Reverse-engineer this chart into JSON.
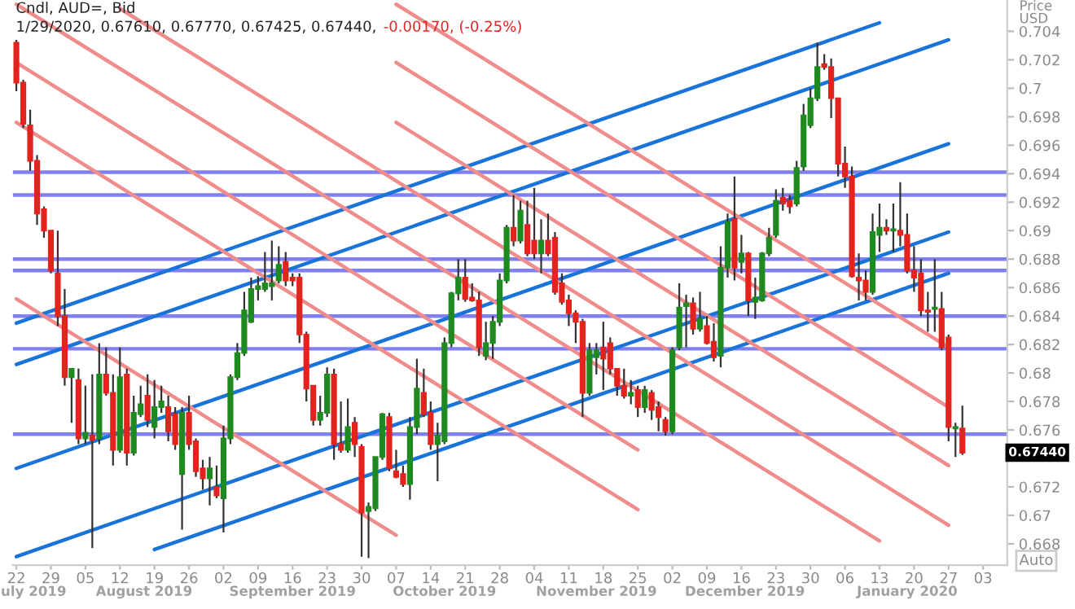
{
  "chart_data": {
    "type": "candlestick",
    "title": "Cndl, AUD=, Bid",
    "ylabel": "Price\nUSD",
    "annotations": [
      "1/29/2020, 0.67610, 0.67770, 0.67425, 0.67440,",
      "-0.00170, (-0.25%)",
      "0.67440",
      "Auto",
      "uly 2019",
      "August 2019",
      "September 2019",
      "October 2019",
      "November 2019",
      "December 2019",
      "January 2020"
    ],
    "categories": [
      "22",
      null,
      null,
      null,
      null,
      "29",
      null,
      null,
      null,
      null,
      "05",
      null,
      null,
      null,
      null,
      "12",
      null,
      null,
      null,
      null,
      "19",
      null,
      null,
      null,
      null,
      "26",
      null,
      null,
      null,
      null,
      "02",
      null,
      null,
      null,
      null,
      "09",
      null,
      null,
      null,
      null,
      "16",
      null,
      null,
      null,
      null,
      "23",
      null,
      null,
      null,
      null,
      "30",
      null,
      null,
      null,
      null,
      "07",
      null,
      null,
      null,
      null,
      "14",
      null,
      null,
      null,
      null,
      "21",
      null,
      null,
      null,
      null,
      "28",
      null,
      null,
      null,
      null,
      "04",
      null,
      null,
      null,
      null,
      "11",
      null,
      null,
      null,
      null,
      "18",
      null,
      null,
      null,
      null,
      "25",
      null,
      null,
      null,
      null,
      "02",
      null,
      null,
      null,
      null,
      "09",
      null,
      null,
      null,
      null,
      "16",
      null,
      null,
      null,
      null,
      "23",
      null,
      null,
      null,
      null,
      "30",
      null,
      null,
      null,
      null,
      "06",
      null,
      null,
      null,
      null,
      "13",
      null,
      null,
      null,
      null,
      "20",
      null,
      null,
      null,
      null,
      "27",
      null,
      null,
      null,
      null,
      "03"
    ],
    "ohlc": [
      [
        0.7032,
        0.7034,
        0.6998,
        0.7004
      ],
      [
        0.7004,
        0.7006,
        0.6972,
        0.6975
      ],
      [
        0.6974,
        0.6985,
        0.6942,
        0.6949
      ],
      [
        0.6949,
        0.6953,
        0.6904,
        0.6912
      ],
      [
        0.6915,
        0.6917,
        0.6895,
        0.69
      ],
      [
        0.69,
        0.69,
        0.687,
        0.6872
      ],
      [
        0.687,
        0.69,
        0.6833,
        0.684
      ],
      [
        0.684,
        0.6859,
        0.6791,
        0.6797
      ],
      [
        0.6797,
        0.6803,
        0.6765,
        0.6803
      ],
      [
        0.6795,
        0.6803,
        0.675,
        0.6754
      ],
      [
        0.6754,
        0.6791,
        0.675,
        0.6758
      ],
      [
        0.6756,
        0.6799,
        0.6677,
        0.6753
      ],
      [
        0.6754,
        0.6821,
        0.675,
        0.6799
      ],
      [
        0.6799,
        0.6818,
        0.6784,
        0.6786
      ],
      [
        0.6786,
        0.6799,
        0.6735,
        0.6746
      ],
      [
        0.6746,
        0.6818,
        0.6744,
        0.6797
      ],
      [
        0.6799,
        0.6803,
        0.6735,
        0.6744
      ],
      [
        0.6744,
        0.6784,
        0.6742,
        0.6772
      ],
      [
        0.6771,
        0.6791,
        0.6769,
        0.6778
      ],
      [
        0.6784,
        0.6799,
        0.6762,
        0.6767
      ],
      [
        0.6762,
        0.6795,
        0.6754,
        0.6776
      ],
      [
        0.6776,
        0.6791,
        0.6772,
        0.678
      ],
      [
        0.6776,
        0.6784,
        0.6752,
        0.6759
      ],
      [
        0.6771,
        0.6776,
        0.6746,
        0.675
      ],
      [
        0.6729,
        0.6776,
        0.669,
        0.6772
      ],
      [
        0.6772,
        0.6784,
        0.6746,
        0.675
      ],
      [
        0.6752,
        0.6754,
        0.6727,
        0.6731
      ],
      [
        0.6733,
        0.6739,
        0.6718,
        0.6726
      ],
      [
        0.6726,
        0.6741,
        0.6707,
        0.6733
      ],
      [
        0.672,
        0.6735,
        0.6712,
        0.6714
      ],
      [
        0.6712,
        0.6763,
        0.6688,
        0.6754
      ],
      [
        0.6754,
        0.6799,
        0.675,
        0.6797
      ],
      [
        0.6797,
        0.6821,
        0.6795,
        0.6814
      ],
      [
        0.6814,
        0.6857,
        0.6812,
        0.6844
      ],
      [
        0.6836,
        0.6867,
        0.6835,
        0.6859
      ],
      [
        0.6859,
        0.6868,
        0.6851,
        0.6861
      ],
      [
        0.6859,
        0.6885,
        0.6857,
        0.6863
      ],
      [
        0.6861,
        0.6893,
        0.6851,
        0.6863
      ],
      [
        0.6865,
        0.6889,
        0.6863,
        0.6876
      ],
      [
        0.6878,
        0.6885,
        0.6861,
        0.6865
      ],
      [
        0.6867,
        0.687,
        0.6861,
        0.6865
      ],
      [
        0.6867,
        0.687,
        0.6821,
        0.6827
      ],
      [
        0.6827,
        0.6829,
        0.678,
        0.6789
      ],
      [
        0.6791,
        0.6791,
        0.6763,
        0.6767
      ],
      [
        0.6767,
        0.6784,
        0.6763,
        0.6772
      ],
      [
        0.6772,
        0.6804,
        0.6769,
        0.6799
      ],
      [
        0.6799,
        0.6803,
        0.6739,
        0.675
      ],
      [
        0.675,
        0.678,
        0.6744,
        0.6746
      ],
      [
        0.6746,
        0.6782,
        0.6744,
        0.6762
      ],
      [
        0.6765,
        0.6769,
        0.6741,
        0.675
      ],
      [
        0.6748,
        0.675,
        0.6671,
        0.6702
      ],
      [
        0.6703,
        0.6709,
        0.667,
        0.6706
      ],
      [
        0.6705,
        0.6741,
        0.6703,
        0.6741
      ],
      [
        0.6741,
        0.6772,
        0.6739,
        0.6771
      ],
      [
        0.6769,
        0.6772,
        0.6731,
        0.6733
      ],
      [
        0.6731,
        0.6746,
        0.6726,
        0.6727
      ],
      [
        0.6729,
        0.6735,
        0.672,
        0.6722
      ],
      [
        0.6722,
        0.6769,
        0.6711,
        0.6762
      ],
      [
        0.6762,
        0.681,
        0.6757,
        0.6789
      ],
      [
        0.6786,
        0.6803,
        0.6769,
        0.6771
      ],
      [
        0.6772,
        0.678,
        0.6746,
        0.675
      ],
      [
        0.675,
        0.6765,
        0.6724,
        0.6756
      ],
      [
        0.6752,
        0.6825,
        0.675,
        0.6821
      ],
      [
        0.6821,
        0.6857,
        0.6818,
        0.6856
      ],
      [
        0.6856,
        0.688,
        0.6851,
        0.6867
      ],
      [
        0.6867,
        0.688,
        0.685,
        0.6852
      ],
      [
        0.6853,
        0.6863,
        0.685,
        0.6851
      ],
      [
        0.6851,
        0.6857,
        0.6812,
        0.6818
      ],
      [
        0.6812,
        0.6836,
        0.6809,
        0.6821
      ],
      [
        0.6821,
        0.684,
        0.681,
        0.6836
      ],
      [
        0.6836,
        0.687,
        0.6833,
        0.6865
      ],
      [
        0.6865,
        0.6904,
        0.6863,
        0.6902
      ],
      [
        0.6902,
        0.6925,
        0.6889,
        0.6893
      ],
      [
        0.6893,
        0.6921,
        0.6891,
        0.6914
      ],
      [
        0.6904,
        0.6921,
        0.6882,
        0.6884
      ],
      [
        0.6893,
        0.693,
        0.688,
        0.6884
      ],
      [
        0.6884,
        0.6908,
        0.687,
        0.6893
      ],
      [
        0.6893,
        0.6912,
        0.6882,
        0.6884
      ],
      [
        0.6895,
        0.6899,
        0.6855,
        0.6857
      ],
      [
        0.6863,
        0.687,
        0.6848,
        0.685
      ],
      [
        0.6851,
        0.6855,
        0.6833,
        0.6842
      ],
      [
        0.6842,
        0.6844,
        0.6821,
        0.6836
      ],
      [
        0.6836,
        0.6838,
        0.6769,
        0.6786
      ],
      [
        0.6786,
        0.6821,
        0.6784,
        0.6816
      ],
      [
        0.6811,
        0.6821,
        0.6799,
        0.6816
      ],
      [
        0.6818,
        0.6836,
        0.6788,
        0.681
      ],
      [
        0.6821,
        0.6825,
        0.6799,
        0.6803
      ],
      [
        0.6803,
        0.6803,
        0.6784,
        0.6791
      ],
      [
        0.6791,
        0.6803,
        0.6782,
        0.6784
      ],
      [
        0.6784,
        0.6795,
        0.6778,
        0.6786
      ],
      [
        0.6788,
        0.6791,
        0.6769,
        0.6776
      ],
      [
        0.6776,
        0.6791,
        0.6772,
        0.6788
      ],
      [
        0.6786,
        0.6788,
        0.6767,
        0.6774
      ],
      [
        0.6776,
        0.678,
        0.6759,
        0.6769
      ],
      [
        0.6767,
        0.6769,
        0.6756,
        0.6759
      ],
      [
        0.6759,
        0.6818,
        0.6757,
        0.6816
      ],
      [
        0.6818,
        0.6863,
        0.6816,
        0.6846
      ],
      [
        0.6847,
        0.6855,
        0.6818,
        0.6849
      ],
      [
        0.6849,
        0.6853,
        0.6827,
        0.6831
      ],
      [
        0.6831,
        0.6857,
        0.6829,
        0.6838
      ],
      [
        0.6833,
        0.684,
        0.682,
        0.6821
      ],
      [
        0.6822,
        0.6835,
        0.6808,
        0.6811
      ],
      [
        0.6812,
        0.6889,
        0.6804,
        0.6874
      ],
      [
        0.6874,
        0.6912,
        0.6867,
        0.6906
      ],
      [
        0.6908,
        0.6938,
        0.6865,
        0.6874
      ],
      [
        0.6878,
        0.6897,
        0.687,
        0.6884
      ],
      [
        0.6884,
        0.6885,
        0.684,
        0.6851
      ],
      [
        0.685,
        0.6867,
        0.6838,
        0.6853
      ],
      [
        0.6851,
        0.6885,
        0.685,
        0.6884
      ],
      [
        0.6884,
        0.6902,
        0.6882,
        0.6895
      ],
      [
        0.6897,
        0.6929,
        0.6895,
        0.6921
      ],
      [
        0.6923,
        0.693,
        0.6914,
        0.6919
      ],
      [
        0.6921,
        0.6925,
        0.6912,
        0.6917
      ],
      [
        0.6919,
        0.6949,
        0.6917,
        0.6944
      ],
      [
        0.6945,
        0.6989,
        0.6942,
        0.6981
      ],
      [
        0.6974,
        0.7,
        0.6972,
        0.6993
      ],
      [
        0.6993,
        0.7032,
        0.6991,
        0.7015
      ],
      [
        0.7017,
        0.7024,
        0.7013,
        0.7015
      ],
      [
        0.7015,
        0.7021,
        0.6979,
        0.6993
      ],
      [
        0.6993,
        0.6993,
        0.6938,
        0.6947
      ],
      [
        0.6947,
        0.6959,
        0.693,
        0.6938
      ],
      [
        0.6938,
        0.6945,
        0.6867,
        0.6868
      ],
      [
        0.6867,
        0.6884,
        0.6851,
        0.6865
      ],
      [
        0.6865,
        0.6872,
        0.6851,
        0.6857
      ],
      [
        0.6857,
        0.6912,
        0.6855,
        0.6899
      ],
      [
        0.6897,
        0.6919,
        0.6885,
        0.6902
      ],
      [
        0.6902,
        0.6908,
        0.6897,
        0.69
      ],
      [
        0.69,
        0.6919,
        0.6885,
        0.6901
      ],
      [
        0.69,
        0.6934,
        0.6889,
        0.6897
      ],
      [
        0.6897,
        0.6912,
        0.687,
        0.6872
      ],
      [
        0.6872,
        0.6889,
        0.6857,
        0.6867
      ],
      [
        0.687,
        0.688,
        0.684,
        0.6844
      ],
      [
        0.6844,
        0.6857,
        0.6829,
        0.6843
      ],
      [
        0.6845,
        0.688,
        0.6829,
        0.6846
      ],
      [
        0.6845,
        0.6857,
        0.6816,
        0.6818
      ],
      [
        0.6825,
        0.6827,
        0.6752,
        0.6762
      ],
      [
        0.6761,
        0.6765,
        0.6741,
        0.6762
      ],
      [
        0.6761,
        0.6777,
        0.67425,
        0.6744
      ],
      null,
      null,
      null
    ],
    "colors": [
      "#e3231e",
      "#e3231e",
      "#e3231e",
      "#e3231e",
      "#e3231e",
      "#e3231e",
      "#e3231e",
      "#e3231e",
      "#1f8a1f",
      "#e3231e",
      "#1f8a1f",
      "#e3231e",
      "#1f8a1f",
      "#e3231e",
      "#e3231e",
      "#1f8a1f",
      "#e3231e",
      "#1f8a1f",
      "#1f8a1f",
      "#e3231e",
      "#1f8a1f",
      "#1f8a1f",
      "#e3231e",
      "#e3231e",
      "#1f8a1f",
      "#e3231e",
      "#e3231e",
      "#e3231e",
      "#1f8a1f",
      "#e3231e",
      "#1f8a1f",
      "#1f8a1f",
      "#1f8a1f",
      "#1f8a1f",
      "#1f8a1f",
      "#1f8a1f",
      "#1f8a1f",
      "#1f8a1f",
      "#1f8a1f",
      "#e3231e",
      "#e3231e",
      "#e3231e",
      "#e3231e",
      "#e3231e",
      "#1f8a1f",
      "#1f8a1f",
      "#e3231e",
      "#e3231e",
      "#1f8a1f",
      "#e3231e",
      "#e3231e",
      "#1f8a1f",
      "#1f8a1f",
      "#1f8a1f",
      "#e3231e",
      "#e3231e",
      "#e3231e",
      "#1f8a1f",
      "#1f8a1f",
      "#e3231e",
      "#e3231e",
      "#1f8a1f",
      "#1f8a1f",
      "#1f8a1f",
      "#1f8a1f",
      "#e3231e",
      "#e3231e",
      "#e3231e",
      "#1f8a1f",
      "#1f8a1f",
      "#1f8a1f",
      "#1f8a1f",
      "#e3231e",
      "#1f8a1f",
      "#e3231e",
      "#e3231e",
      "#1f8a1f",
      "#e3231e",
      "#e3231e",
      "#e3231e",
      "#e3231e",
      "#e3231e",
      "#e3231e",
      "#1f8a1f",
      "#1f8a1f",
      "#e3231e",
      "#e3231e",
      "#e3231e",
      "#e3231e",
      "#1f8a1f",
      "#e3231e",
      "#1f8a1f",
      "#e3231e",
      "#e3231e",
      "#e3231e",
      "#1f8a1f",
      "#1f8a1f",
      "#1f8a1f",
      "#e3231e",
      "#1f8a1f",
      "#e3231e",
      "#e3231e",
      "#1f8a1f",
      "#1f8a1f",
      "#e3231e",
      "#1f8a1f",
      "#e3231e",
      "#1f8a1f",
      "#1f8a1f",
      "#1f8a1f",
      "#1f8a1f",
      "#e3231e",
      "#e3231e",
      "#1f8a1f",
      "#1f8a1f",
      "#1f8a1f",
      "#1f8a1f",
      "#e3231e",
      "#e3231e",
      "#e3231e",
      "#e3231e",
      "#e3231e",
      "#e3231e",
      "#e3231e",
      "#1f8a1f",
      "#1f8a1f",
      "#e3231e",
      "#1f8a1f",
      "#e3231e",
      "#e3231e",
      "#e3231e",
      "#e3231e",
      "#e3231e",
      "#1f8a1f",
      "#e3231e",
      "#e3231e",
      "#1f8a1f",
      "#e3231e",
      null,
      null,
      null
    ],
    "series": [
      {
        "type": "line",
        "color": "#1a73d9",
        "x": [
          "22",
          "13"
        ],
        "values": [
          0.6835,
          0.7046
        ]
      },
      {
        "type": "line",
        "color": "#1a73d9",
        "x": [
          "22",
          "27"
        ],
        "values": [
          0.6806,
          0.7034
        ]
      },
      {
        "type": "line",
        "color": "#1a73d9",
        "x": [
          "22",
          "27"
        ],
        "values": [
          0.6733,
          0.6961
        ]
      },
      {
        "type": "line",
        "color": "#1a73d9",
        "x": [
          "22",
          "27"
        ],
        "values": [
          0.6671,
          0.6899
        ]
      },
      {
        "type": "line",
        "color": "#1a73d9",
        "x": [
          "19",
          "27"
        ],
        "values": [
          0.6676,
          0.687
        ]
      },
      {
        "type": "line",
        "color": "#f08c8c",
        "x": [
          "07",
          "27"
        ],
        "values": [
          0.7059,
          0.6818
        ]
      },
      {
        "type": "line",
        "color": "#f08c8c",
        "x": [
          "07",
          "27"
        ],
        "values": [
          0.7018,
          0.6776
        ]
      },
      {
        "type": "line",
        "color": "#f08c8c",
        "x": [
          "07",
          "27"
        ],
        "values": [
          0.6976,
          0.6735
        ]
      },
      {
        "type": "line",
        "color": "#f08c8c",
        "x": [
          "12",
          "27"
        ],
        "values": [
          0.7056,
          0.6693
        ]
      },
      {
        "type": "line",
        "color": "#f08c8c",
        "x": [
          "22",
          "13"
        ],
        "values": [
          0.7059,
          0.6682
        ]
      },
      {
        "type": "line",
        "color": "#f08c8c",
        "x": [
          "22",
          "25"
        ],
        "values": [
          0.7018,
          0.6746
        ]
      },
      {
        "type": "line",
        "color": "#f08c8c",
        "x": [
          "22",
          "25"
        ],
        "values": [
          0.6976,
          0.6704
        ]
      },
      {
        "type": "line",
        "color": "#f08c8c",
        "x": [
          "22",
          "07"
        ],
        "values": [
          0.6852,
          0.6686
        ]
      }
    ],
    "ref_lines": [
      {
        "axis": "y",
        "value": 0.6941,
        "color": "#8080ee"
      },
      {
        "axis": "y",
        "value": 0.6925,
        "color": "#8080ee"
      },
      {
        "axis": "y",
        "value": 0.688,
        "color": "#8080ee"
      },
      {
        "axis": "y",
        "value": 0.6872,
        "color": "#8080ee"
      },
      {
        "axis": "y",
        "value": 0.684,
        "color": "#8080ee"
      },
      {
        "axis": "y",
        "value": 0.6817,
        "color": "#8080ee"
      },
      {
        "axis": "y",
        "value": 0.6757,
        "color": "#8080ee"
      }
    ],
    "ylim": [
      0.6665,
      0.7062
    ],
    "yticks": [
      0.668,
      0.67,
      0.672,
      0.676,
      0.678,
      0.68,
      0.682,
      0.684,
      0.686,
      0.688,
      0.69,
      0.692,
      0.694,
      0.696,
      0.698,
      0.7,
      0.702,
      0.704
    ]
  }
}
